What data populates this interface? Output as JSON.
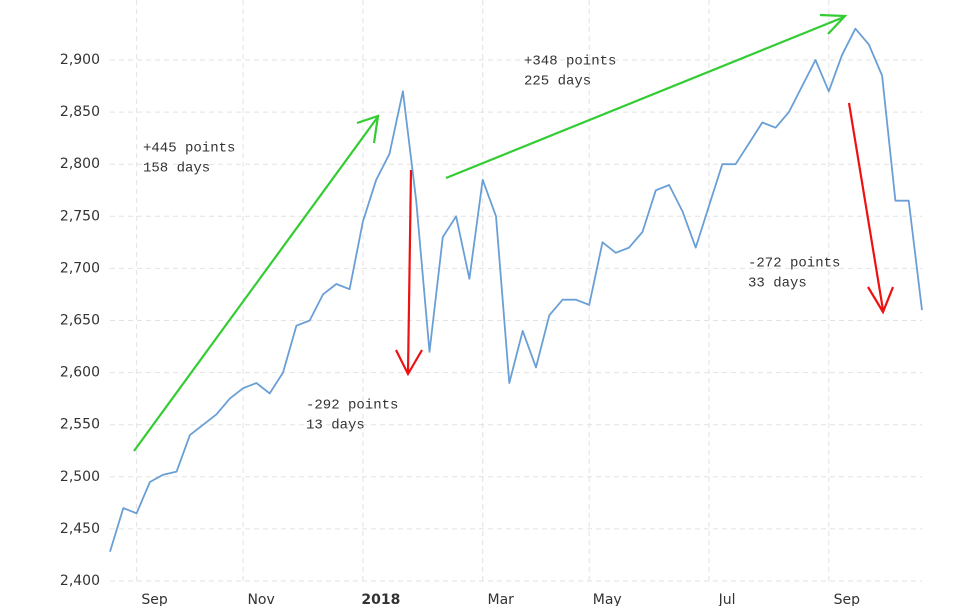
{
  "chart_data": {
    "type": "line",
    "categories": [
      null,
      null,
      "Sep",
      null,
      null,
      null,
      null,
      null,
      null,
      null,
      "Nov",
      null,
      null,
      null,
      null,
      null,
      null,
      null,
      null,
      "2018",
      null,
      null,
      null,
      null,
      null,
      null,
      null,
      null,
      "Mar",
      null,
      null,
      null,
      null,
      null,
      null,
      null,
      "May",
      null,
      null,
      null,
      null,
      null,
      null,
      null,
      null,
      "Jul",
      null,
      null,
      null,
      null,
      null,
      null,
      null,
      null,
      "Sep",
      null,
      null,
      null,
      null,
      null,
      null,
      null
    ],
    "series": [
      {
        "color": "#6a9fd6",
        "values": [
          2428,
          2470,
          2465,
          2495,
          2502,
          2505,
          2540,
          2550,
          2560,
          2575,
          2585,
          2590,
          2580,
          2600,
          2645,
          2650,
          2675,
          2685,
          2680,
          2745,
          2785,
          2810,
          2870,
          2765,
          2620,
          2730,
          2750,
          2690,
          2785,
          2750,
          2590,
          2640,
          2605,
          2655,
          2670,
          2670,
          2665,
          2725,
          2715,
          2720,
          2735,
          2775,
          2780,
          2755,
          2720,
          2760,
          2800,
          2800,
          2820,
          2840,
          2835,
          2850,
          2875,
          2900,
          2870,
          2905,
          2930,
          2915,
          2885,
          2765,
          2765,
          2660
        ]
      }
    ],
    "ylim": [
      2400,
      2950
    ],
    "yticks": [
      {
        "value": 2400,
        "label": "2,400"
      },
      {
        "value": 2450,
        "label": "2,450"
      },
      {
        "value": 2500,
        "label": "2,500"
      },
      {
        "value": 2550,
        "label": "2,550"
      },
      {
        "value": 2600,
        "label": "2,600"
      },
      {
        "value": 2650,
        "label": "2,650"
      },
      {
        "value": 2700,
        "label": "2,700"
      },
      {
        "value": 2750,
        "label": "2,750"
      },
      {
        "value": 2800,
        "label": "2,800"
      },
      {
        "value": 2850,
        "label": "2,850"
      },
      {
        "value": 2900,
        "label": "2,900"
      }
    ],
    "grid": true,
    "annotations": [
      [
        "+445 points",
        "158 days"
      ],
      [
        "-292 points",
        "13 days"
      ],
      [
        "+348 points",
        "225 days"
      ],
      [
        "-272 points",
        "33 days"
      ]
    ]
  }
}
